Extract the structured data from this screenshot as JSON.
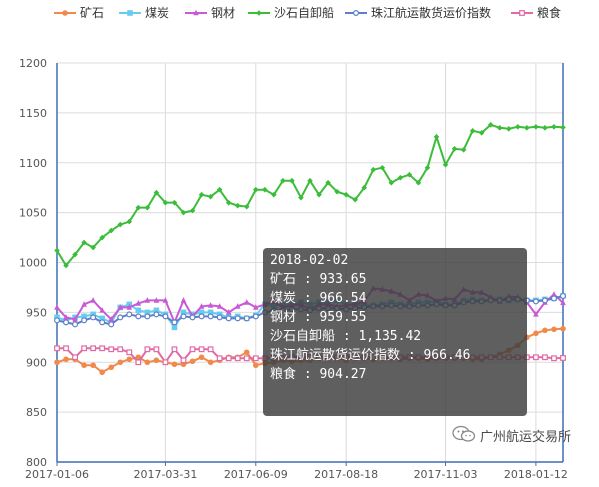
{
  "chart_data": {
    "type": "line",
    "x": [
      "2017-01-06",
      "2017-01-13",
      "2017-01-20",
      "2017-01-27",
      "2017-02-03",
      "2017-02-10",
      "2017-02-17",
      "2017-02-24",
      "2017-03-03",
      "2017-03-10",
      "2017-03-17",
      "2017-03-24",
      "2017-03-31",
      "2017-04-07",
      "2017-04-14",
      "2017-04-21",
      "2017-04-28",
      "2017-05-05",
      "2017-05-12",
      "2017-05-19",
      "2017-05-26",
      "2017-06-02",
      "2017-06-09",
      "2017-06-16",
      "2017-06-23",
      "2017-06-30",
      "2017-07-07",
      "2017-07-14",
      "2017-07-21",
      "2017-07-28",
      "2017-08-04",
      "2017-08-11",
      "2017-08-18",
      "2017-08-25",
      "2017-09-01",
      "2017-09-08",
      "2017-09-15",
      "2017-09-22",
      "2017-09-29",
      "2017-10-06",
      "2017-10-13",
      "2017-10-20",
      "2017-10-27",
      "2017-11-03",
      "2017-11-10",
      "2017-11-17",
      "2017-11-24",
      "2017-12-01",
      "2017-12-08",
      "2017-12-15",
      "2017-12-22",
      "2017-12-29",
      "2018-01-05",
      "2018-01-12",
      "2018-01-19",
      "2018-01-26",
      "2018-02-02"
    ],
    "xticks": [
      "2017-01-06",
      "2017-03-31",
      "2017-06-09",
      "2017-08-18",
      "2017-11-03",
      "2018-01-12"
    ],
    "ylim": [
      800,
      1200
    ],
    "yticks": [
      800,
      850,
      900,
      950,
      1000,
      1050,
      1100,
      1150,
      1200
    ],
    "grid": true,
    "legend_position": "top",
    "series": [
      {
        "name": "矿石",
        "color": "#f08a4b",
        "marker": "circle",
        "values": [
          900,
          903,
          903,
          897,
          897,
          890,
          895,
          900,
          903,
          905,
          900,
          902,
          900,
          898,
          898,
          901,
          905,
          900,
          902,
          905,
          905,
          910,
          897,
          899,
          900,
          902,
          901,
          902,
          902,
          904,
          904,
          904,
          902,
          904,
          904,
          903,
          904,
          904,
          903,
          904,
          904,
          903,
          904,
          904,
          904,
          904,
          903,
          903,
          905,
          908,
          912,
          917,
          925,
          929,
          932,
          933,
          933.65
        ]
      },
      {
        "name": "煤炭",
        "color": "#66ccf0",
        "marker": "square",
        "values": [
          945,
          942,
          945,
          946,
          948,
          944,
          940,
          955,
          958,
          952,
          950,
          952,
          948,
          935,
          950,
          948,
          950,
          950,
          948,
          945,
          946,
          944,
          947,
          958,
          957,
          958,
          958,
          960,
          958,
          960,
          960,
          962,
          958,
          958,
          957,
          957,
          958,
          960,
          958,
          958,
          960,
          960,
          961,
          958,
          958,
          962,
          963,
          962,
          963,
          963,
          962,
          963,
          962,
          962,
          963,
          964,
          966.54
        ]
      },
      {
        "name": "钢材",
        "color": "#c95ad6",
        "marker": "triangle",
        "values": [
          955,
          945,
          943,
          958,
          962,
          952,
          943,
          955,
          955,
          959,
          962,
          962,
          962,
          940,
          962,
          946,
          956,
          957,
          956,
          950,
          956,
          960,
          955,
          958,
          961,
          955,
          957,
          958,
          953,
          958,
          958,
          956,
          957,
          958,
          961,
          974,
          973,
          971,
          968,
          962,
          968,
          967,
          961,
          964,
          963,
          973,
          970,
          970,
          965,
          961,
          966,
          965,
          960,
          948,
          960,
          968,
          959.55
        ]
      },
      {
        "name": "沙石自卸船",
        "color": "#3cbd3a",
        "marker": "diamond",
        "values": [
          1012,
          997,
          1008,
          1020,
          1015,
          1025,
          1032,
          1038,
          1041,
          1055,
          1055,
          1070,
          1060,
          1060,
          1050,
          1052,
          1068,
          1066,
          1073,
          1060,
          1057,
          1056,
          1073,
          1073,
          1068,
          1082,
          1082,
          1065,
          1082,
          1068,
          1080,
          1071,
          1068,
          1063,
          1075,
          1093,
          1095,
          1080,
          1085,
          1088,
          1080,
          1095,
          1126,
          1098,
          1114,
          1113,
          1132,
          1130,
          1138,
          1135,
          1134,
          1136,
          1135,
          1136,
          1135,
          1136,
          1135.42
        ]
      },
      {
        "name": "珠江航运散货运价指数",
        "color": "#5d7fc8",
        "marker": "hollow-circle",
        "values": [
          942,
          940,
          938,
          942,
          945,
          940,
          938,
          945,
          948,
          946,
          946,
          948,
          946,
          940,
          946,
          945,
          946,
          946,
          945,
          944,
          944,
          944,
          946,
          950,
          952,
          952,
          953,
          953,
          952,
          954,
          954,
          954,
          953,
          954,
          955,
          956,
          956,
          957,
          956,
          956,
          957,
          957,
          958,
          957,
          957,
          960,
          961,
          961,
          962,
          962,
          963,
          963,
          962,
          961,
          962,
          964,
          966.46
        ]
      },
      {
        "name": "粮食",
        "color": "#e06aa3",
        "marker": "hollow-square",
        "values": [
          914,
          914,
          905,
          914,
          914,
          914,
          913,
          913,
          910,
          900,
          913,
          913,
          900,
          913,
          902,
          913,
          913,
          913,
          904,
          904,
          904,
          904,
          904,
          904,
          904,
          904,
          905,
          905,
          905,
          905,
          905,
          905,
          905,
          905,
          905,
          905,
          905,
          905,
          905,
          905,
          905,
          905,
          905,
          905,
          905,
          905,
          905,
          905,
          905,
          905,
          905,
          905,
          905,
          905,
          905,
          904,
          904.27
        ]
      }
    ]
  },
  "tooltip": {
    "date": "2018-02-02",
    "lines": [
      "矿石 : 933.65",
      "煤炭 : 966.54",
      "钢材 : 959.55",
      "沙石自卸船 : 1,135.42",
      "珠江航运散货运价指数 : 966.46",
      "粮食 : 904.27"
    ]
  },
  "watermark": {
    "text": "广州航运交易所",
    "icon": "wechat-icon"
  }
}
